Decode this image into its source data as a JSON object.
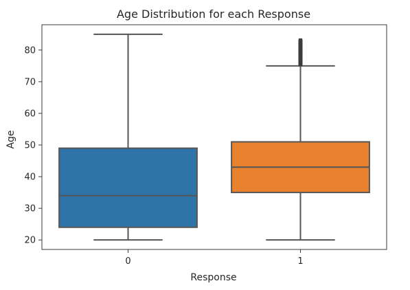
{
  "chart_data": {
    "type": "box",
    "title": "Age Distribution for each Response",
    "xlabel": "Response",
    "ylabel": "Age",
    "categories": [
      "0",
      "1"
    ],
    "ylim": [
      17,
      88
    ],
    "yticks": [
      20,
      30,
      40,
      50,
      60,
      70,
      80
    ],
    "grid": false,
    "series": [
      {
        "category": "0",
        "color": "#2f74a8",
        "whisker_low": 20,
        "q1": 24,
        "median": 34,
        "q3": 49,
        "whisker_high": 85,
        "outliers": []
      },
      {
        "category": "1",
        "color": "#e8822e",
        "whisker_low": 20,
        "q1": 35,
        "median": 43,
        "q3": 51,
        "whisker_high": 75,
        "outliers": [
          75.5,
          76,
          76.5,
          77,
          77.5,
          78,
          78.5,
          79,
          79.5,
          80,
          80.5,
          81,
          81.5,
          82,
          82.5,
          83
        ]
      }
    ]
  }
}
